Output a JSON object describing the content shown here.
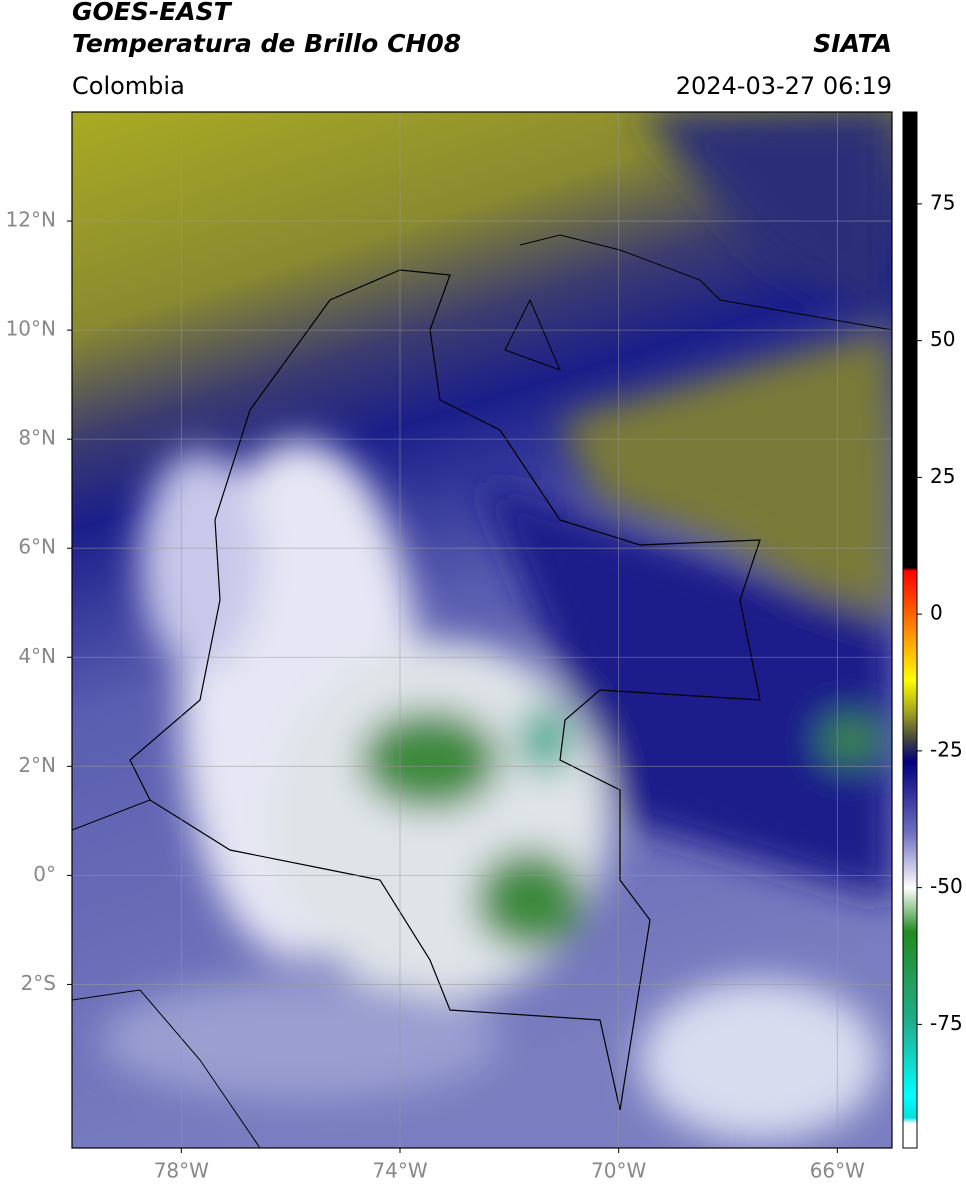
{
  "header": {
    "title": "GOES-EAST",
    "subtitle": "Temperatura de Brillo CH08",
    "region": "Colombia",
    "source": "SIATA",
    "datetime": "2024-03-27 06:19"
  },
  "map": {
    "lon_range": [
      -80,
      -65
    ],
    "lat_range": [
      -5,
      14
    ],
    "grid": true,
    "lon_ticks": [
      {
        "value": -78,
        "label": "78°W"
      },
      {
        "value": -74,
        "label": "74°W"
      },
      {
        "value": -70,
        "label": "70°W"
      },
      {
        "value": -66,
        "label": "66°W"
      }
    ],
    "lat_ticks": [
      {
        "value": 12,
        "label": "12°N"
      },
      {
        "value": 10,
        "label": "10°N"
      },
      {
        "value": 8,
        "label": "8°N"
      },
      {
        "value": 6,
        "label": "6°N"
      },
      {
        "value": 4,
        "label": "4°N"
      },
      {
        "value": 2,
        "label": "2°N"
      },
      {
        "value": 0,
        "label": "0°"
      },
      {
        "value": -2,
        "label": "2°S"
      }
    ]
  },
  "colorbar": {
    "range": [
      -97.6,
      91.8
    ],
    "ticks": [
      75,
      50,
      25,
      0,
      -25,
      -50,
      -75
    ],
    "stops": [
      {
        "value": 91.8,
        "color": "#000000"
      },
      {
        "value": 8.5,
        "color": "#000000"
      },
      {
        "value": 8,
        "color": "#ff0000"
      },
      {
        "value": -3,
        "color": "#ff8c00"
      },
      {
        "value": -12,
        "color": "#ffff00"
      },
      {
        "value": -18,
        "color": "#a0a020"
      },
      {
        "value": -23,
        "color": "#404040"
      },
      {
        "value": -27,
        "color": "#000080"
      },
      {
        "value": -40,
        "color": "#7070c0"
      },
      {
        "value": -50,
        "color": "#ffffff"
      },
      {
        "value": -58,
        "color": "#228b22"
      },
      {
        "value": -75,
        "color": "#20b090"
      },
      {
        "value": -88,
        "color": "#00ffff"
      },
      {
        "value": -92,
        "color": "#00e0e0"
      },
      {
        "value": -93,
        "color": "#ffffff"
      },
      {
        "value": -97.6,
        "color": "#ffffff"
      }
    ]
  }
}
